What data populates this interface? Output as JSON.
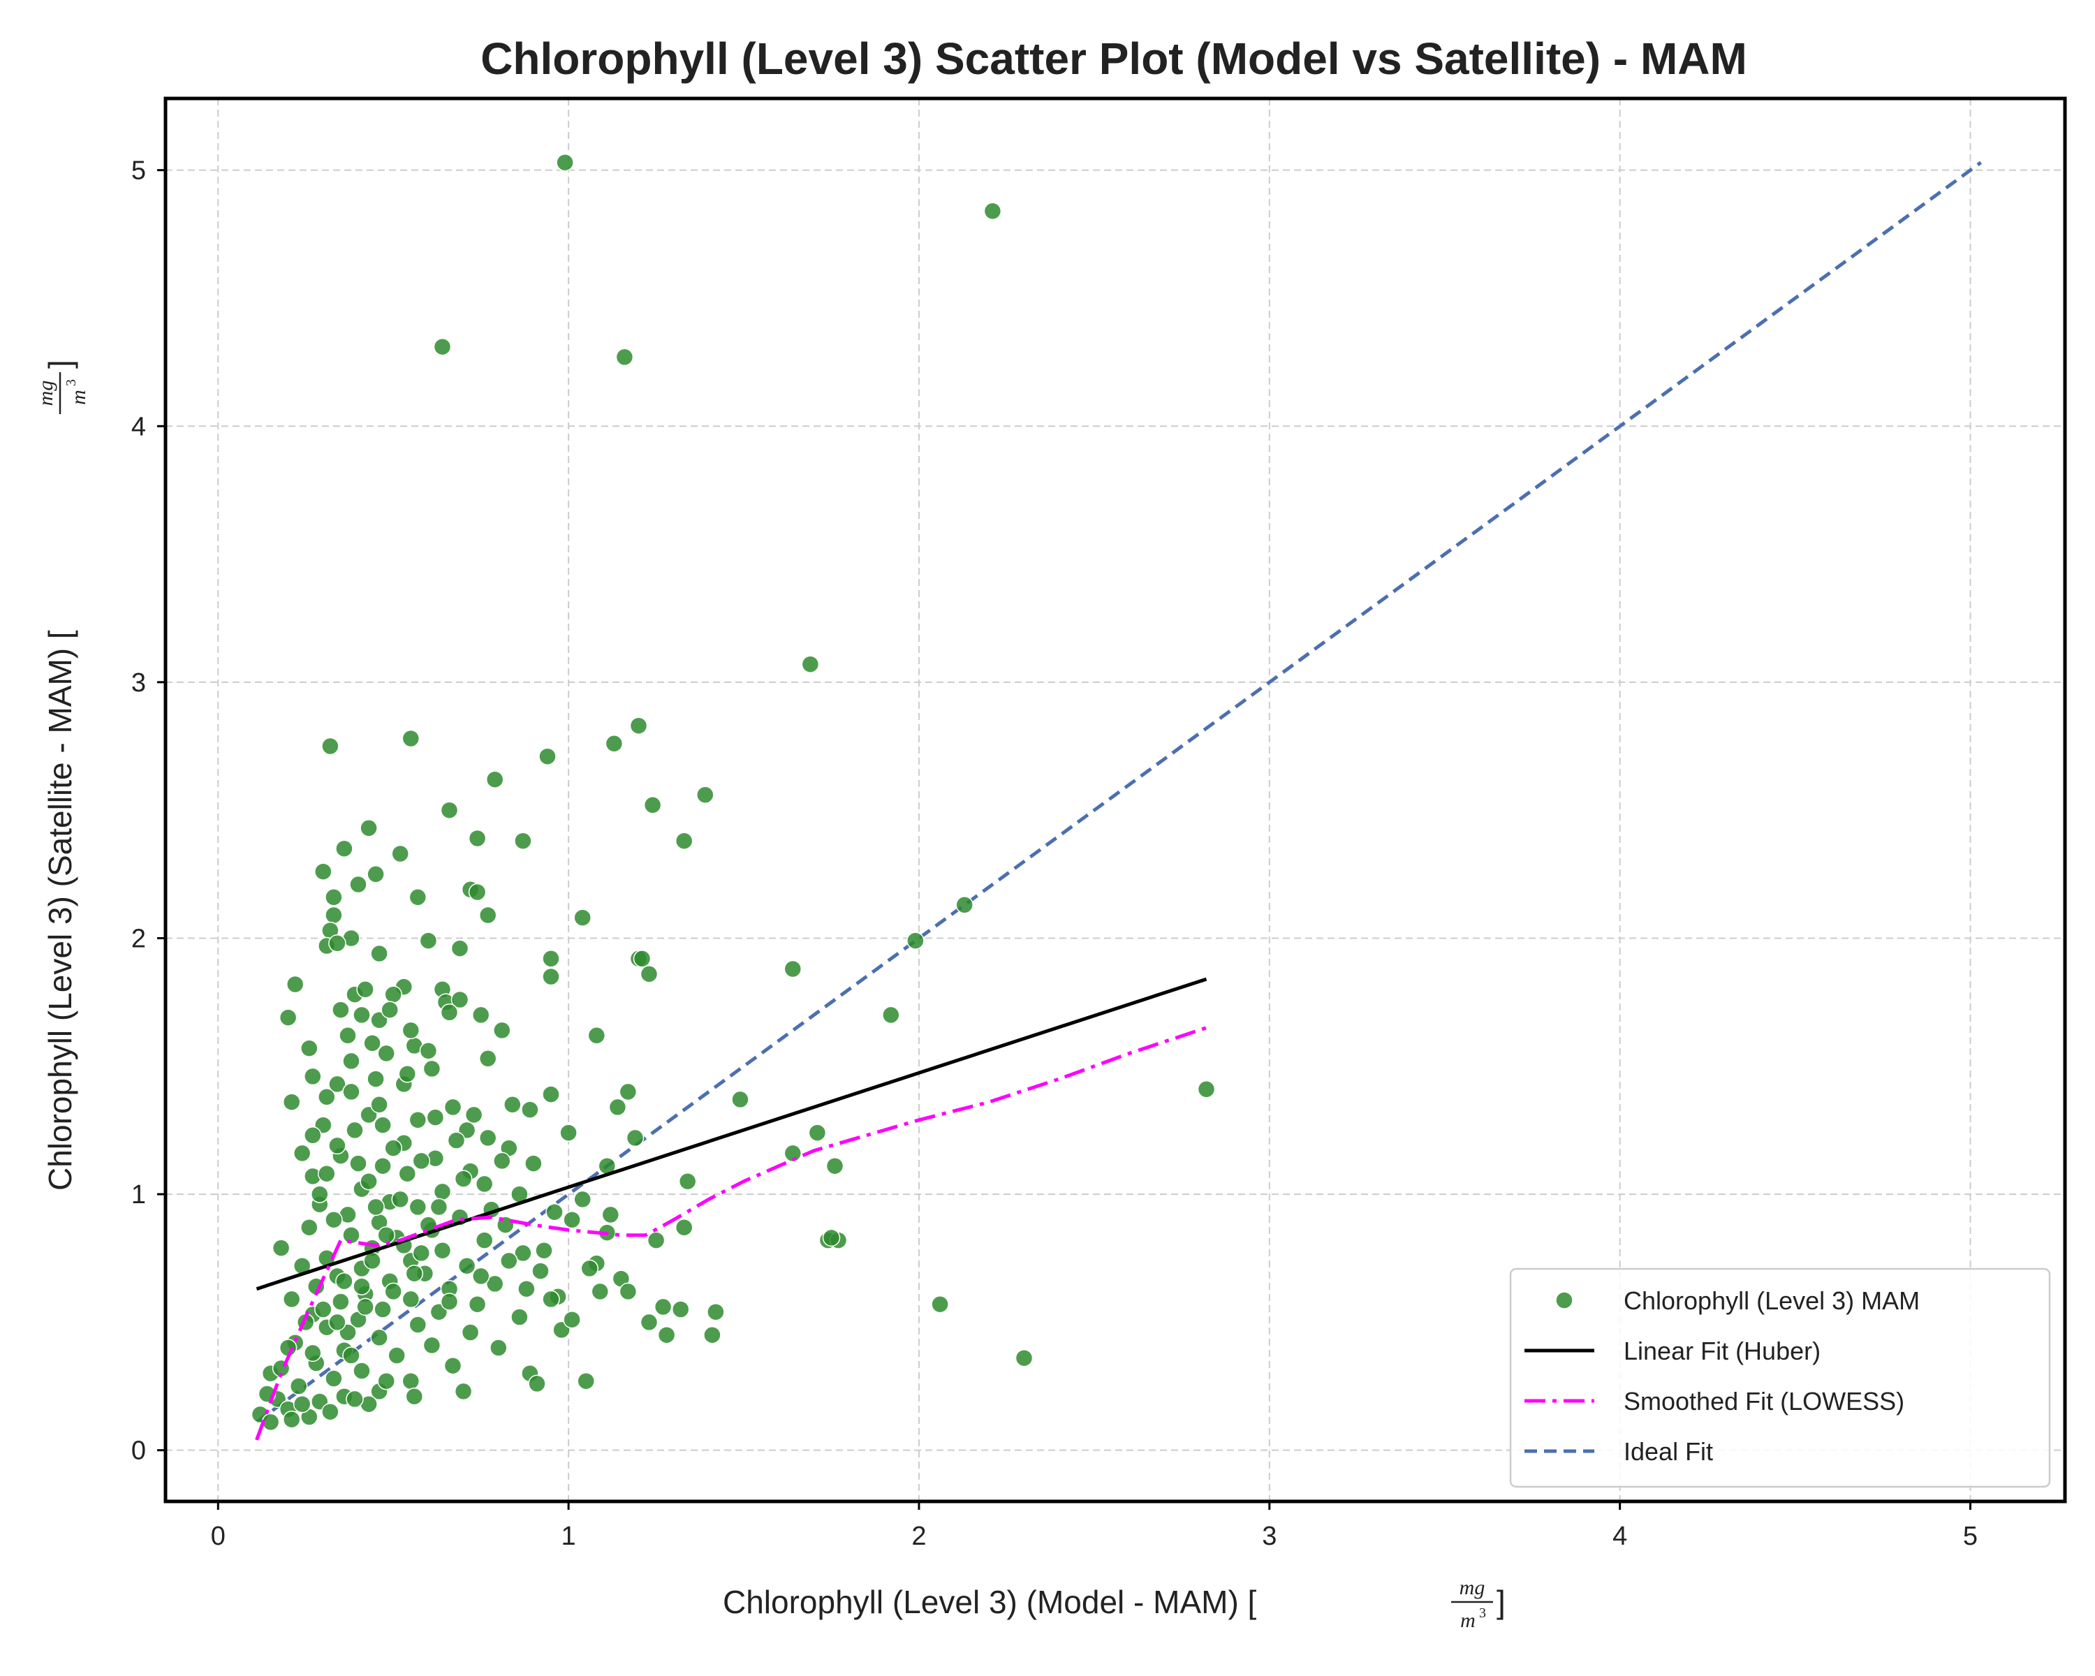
{
  "chart_data": {
    "type": "scatter",
    "title": "Chlorophyll (Level 3) Scatter Plot (Model vs Satellite) - MAM",
    "xlabel": {
      "text": "Chlorophyll (Level 3) (Model - MAM) [",
      "unit_num": "mg",
      "unit_den": "m",
      "unit_exp": "3",
      "close": "]"
    },
    "ylabel": {
      "text": "Chlorophyll (Level 3) (Satellite - MAM) [",
      "unit_num": "mg",
      "unit_den": "m",
      "unit_exp": "3",
      "close": "]"
    },
    "xlim": [
      -0.15,
      5.27
    ],
    "ylim": [
      -0.2,
      5.28
    ],
    "xticks": [
      0,
      1,
      2,
      3,
      4,
      5
    ],
    "yticks": [
      0,
      1,
      2,
      3,
      4,
      5
    ],
    "grid": true,
    "legend_position": "lower-right",
    "colors": {
      "points": "#2e8b2e",
      "linear": "#000000",
      "lowess": "#ff00ff",
      "ideal": "#4c6faf",
      "grid": "#cccccc"
    },
    "series": [
      {
        "name": "Chlorophyll (Level 3) MAM",
        "kind": "points",
        "points": [
          [
            0.99,
            5.03
          ],
          [
            2.21,
            4.84
          ],
          [
            0.64,
            4.31
          ],
          [
            1.16,
            4.27
          ],
          [
            1.69,
            3.07
          ],
          [
            0.55,
            2.78
          ],
          [
            0.32,
            2.75
          ],
          [
            1.13,
            2.76
          ],
          [
            1.2,
            2.83
          ],
          [
            0.94,
            2.71
          ],
          [
            0.79,
            2.62
          ],
          [
            1.39,
            2.56
          ],
          [
            1.24,
            2.52
          ],
          [
            0.66,
            2.5
          ],
          [
            0.43,
            2.43
          ],
          [
            0.87,
            2.38
          ],
          [
            1.33,
            2.38
          ],
          [
            0.74,
            2.39
          ],
          [
            0.36,
            2.35
          ],
          [
            0.52,
            2.33
          ],
          [
            0.3,
            2.26
          ],
          [
            0.45,
            2.25
          ],
          [
            0.4,
            2.21
          ],
          [
            0.72,
            2.19
          ],
          [
            0.74,
            2.18
          ],
          [
            0.57,
            2.16
          ],
          [
            0.33,
            2.16
          ],
          [
            2.13,
            2.13
          ],
          [
            0.77,
            2.09
          ],
          [
            0.33,
            2.09
          ],
          [
            1.04,
            2.08
          ],
          [
            0.32,
            2.03
          ],
          [
            0.6,
            1.99
          ],
          [
            0.38,
            2.0
          ],
          [
            0.31,
            1.97
          ],
          [
            0.34,
            1.98
          ],
          [
            1.99,
            1.99
          ],
          [
            0.69,
            1.96
          ],
          [
            0.46,
            1.94
          ],
          [
            1.2,
            1.92
          ],
          [
            0.95,
            1.92
          ],
          [
            1.21,
            1.92
          ],
          [
            1.64,
            1.88
          ],
          [
            1.23,
            1.86
          ],
          [
            0.95,
            1.85
          ],
          [
            0.22,
            1.82
          ],
          [
            0.53,
            1.81
          ],
          [
            0.64,
            1.8
          ],
          [
            0.5,
            1.78
          ],
          [
            0.39,
            1.78
          ],
          [
            0.65,
            1.75
          ],
          [
            0.69,
            1.76
          ],
          [
            0.35,
            1.72
          ],
          [
            0.41,
            1.7
          ],
          [
            1.92,
            1.7
          ],
          [
            0.2,
            1.69
          ],
          [
            0.66,
            1.71
          ],
          [
            0.75,
            1.7
          ],
          [
            0.46,
            1.68
          ],
          [
            0.81,
            1.64
          ],
          [
            1.08,
            1.62
          ],
          [
            0.26,
            1.57
          ],
          [
            0.56,
            1.58
          ],
          [
            0.48,
            1.55
          ],
          [
            0.38,
            1.52
          ],
          [
            0.77,
            1.53
          ],
          [
            0.61,
            1.49
          ],
          [
            0.45,
            1.45
          ],
          [
            0.53,
            1.43
          ],
          [
            0.34,
            1.43
          ],
          [
            2.82,
            1.41
          ],
          [
            1.17,
            1.4
          ],
          [
            0.95,
            1.39
          ],
          [
            1.49,
            1.37
          ],
          [
            0.21,
            1.36
          ],
          [
            0.84,
            1.35
          ],
          [
            0.67,
            1.34
          ],
          [
            1.14,
            1.34
          ],
          [
            0.89,
            1.33
          ],
          [
            0.43,
            1.31
          ],
          [
            0.57,
            1.29
          ],
          [
            0.3,
            1.27
          ],
          [
            0.71,
            1.25
          ],
          [
            1.0,
            1.24
          ],
          [
            1.71,
            1.24
          ],
          [
            0.27,
            1.23
          ],
          [
            0.77,
            1.22
          ],
          [
            1.19,
            1.22
          ],
          [
            0.53,
            1.2
          ],
          [
            0.83,
            1.18
          ],
          [
            1.64,
            1.16
          ],
          [
            0.35,
            1.15
          ],
          [
            0.62,
            1.14
          ],
          [
            0.9,
            1.12
          ],
          [
            1.76,
            1.11
          ],
          [
            0.47,
            1.11
          ],
          [
            1.11,
            1.11
          ],
          [
            0.72,
            1.09
          ],
          [
            0.27,
            1.07
          ],
          [
            0.31,
            1.08
          ],
          [
            0.54,
            1.08
          ],
          [
            1.34,
            1.05
          ],
          [
            0.76,
            1.04
          ],
          [
            0.41,
            1.02
          ],
          [
            0.64,
            1.01
          ],
          [
            0.86,
            1.0
          ],
          [
            1.04,
            0.98
          ],
          [
            0.49,
            0.97
          ],
          [
            0.29,
            0.96
          ],
          [
            0.57,
            0.95
          ],
          [
            0.96,
            0.93
          ],
          [
            0.37,
            0.92
          ],
          [
            0.69,
            0.91
          ],
          [
            1.01,
            0.9
          ],
          [
            0.46,
            0.89
          ],
          [
            0.82,
            0.88
          ],
          [
            0.26,
            0.87
          ],
          [
            1.33,
            0.87
          ],
          [
            0.61,
            0.86
          ],
          [
            1.11,
            0.85
          ],
          [
            0.38,
            0.84
          ],
          [
            0.51,
            0.83
          ],
          [
            1.74,
            0.82
          ],
          [
            1.77,
            0.82
          ],
          [
            0.76,
            0.82
          ],
          [
            1.25,
            0.82
          ],
          [
            0.18,
            0.79
          ],
          [
            0.44,
            0.79
          ],
          [
            0.64,
            0.78
          ],
          [
            0.87,
            0.77
          ],
          [
            0.31,
            0.75
          ],
          [
            0.55,
            0.74
          ],
          [
            1.08,
            0.73
          ],
          [
            0.24,
            0.72
          ],
          [
            0.71,
            0.72
          ],
          [
            0.41,
            0.71
          ],
          [
            0.92,
            0.7
          ],
          [
            0.59,
            0.69
          ],
          [
            0.34,
            0.68
          ],
          [
            1.15,
            0.67
          ],
          [
            0.49,
            0.66
          ],
          [
            0.79,
            0.65
          ],
          [
            0.28,
            0.64
          ],
          [
            0.66,
            0.63
          ],
          [
            1.09,
            0.62
          ],
          [
            0.42,
            0.61
          ],
          [
            0.97,
            0.6
          ],
          [
            0.55,
            0.59
          ],
          [
            0.21,
            0.59
          ],
          [
            0.35,
            0.58
          ],
          [
            0.74,
            0.57
          ],
          [
            1.27,
            0.56
          ],
          [
            0.47,
            0.55
          ],
          [
            0.63,
            0.54
          ],
          [
            1.42,
            0.54
          ],
          [
            0.27,
            0.53
          ],
          [
            0.86,
            0.52
          ],
          [
            0.4,
            0.51
          ],
          [
            1.23,
            0.5
          ],
          [
            0.57,
            0.49
          ],
          [
            0.31,
            0.48
          ],
          [
            0.98,
            0.47
          ],
          [
            0.72,
            0.46
          ],
          [
            1.41,
            0.45
          ],
          [
            0.46,
            0.44
          ],
          [
            1.28,
            0.45
          ],
          [
            0.22,
            0.42
          ],
          [
            0.61,
            0.41
          ],
          [
            0.36,
            0.39
          ],
          [
            0.8,
            0.4
          ],
          [
            0.51,
            0.37
          ],
          [
            2.3,
            0.36
          ],
          [
            0.28,
            0.34
          ],
          [
            0.67,
            0.33
          ],
          [
            0.41,
            0.31
          ],
          [
            0.15,
            0.3
          ],
          [
            0.89,
            0.3
          ],
          [
            0.33,
            0.28
          ],
          [
            0.55,
            0.27
          ],
          [
            1.05,
            0.27
          ],
          [
            0.23,
            0.25
          ],
          [
            0.91,
            0.26
          ],
          [
            0.46,
            0.23
          ],
          [
            0.7,
            0.23
          ],
          [
            0.36,
            0.21
          ],
          [
            0.17,
            0.2
          ],
          [
            0.56,
            0.21
          ],
          [
            0.29,
            0.19
          ],
          [
            0.43,
            0.18
          ],
          [
            0.2,
            0.16
          ],
          [
            0.12,
            0.14
          ],
          [
            0.26,
            0.13
          ],
          [
            0.15,
            0.11
          ],
          [
            0.21,
            0.12
          ],
          [
            0.32,
            0.15
          ],
          [
            0.39,
            0.2
          ],
          [
            0.24,
            0.18
          ],
          [
            0.48,
            0.27
          ],
          [
            0.5,
            0.62
          ],
          [
            0.53,
            0.8
          ],
          [
            0.45,
            0.95
          ],
          [
            0.43,
            1.05
          ],
          [
            0.5,
            1.18
          ],
          [
            0.39,
            1.25
          ],
          [
            0.46,
            1.35
          ],
          [
            0.42,
            0.56
          ],
          [
            0.36,
            0.66
          ],
          [
            0.58,
            0.77
          ],
          [
            0.6,
            0.88
          ],
          [
            0.52,
            0.98
          ],
          [
            0.4,
            1.12
          ],
          [
            0.33,
            0.9
          ],
          [
            0.3,
            0.55
          ],
          [
            0.37,
            0.46
          ],
          [
            0.44,
            0.74
          ],
          [
            0.56,
            0.69
          ],
          [
            0.63,
            0.95
          ],
          [
            0.7,
            1.06
          ],
          [
            0.48,
            0.84
          ],
          [
            0.41,
            0.64
          ],
          [
            0.66,
            0.58
          ],
          [
            0.75,
            0.68
          ],
          [
            0.83,
            0.74
          ],
          [
            0.88,
            0.63
          ],
          [
            0.93,
            0.78
          ],
          [
            0.38,
            1.4
          ],
          [
            0.54,
            1.47
          ],
          [
            0.47,
            1.27
          ],
          [
            0.58,
            1.13
          ],
          [
            0.34,
            1.19
          ],
          [
            0.29,
            1.0
          ],
          [
            0.62,
            1.3
          ],
          [
            0.68,
            1.21
          ],
          [
            0.2,
            0.4
          ],
          [
            0.25,
            0.5
          ],
          [
            0.18,
            0.32
          ],
          [
            0.14,
            0.22
          ],
          [
            0.27,
            0.38
          ],
          [
            0.34,
            0.5
          ],
          [
            0.38,
            0.37
          ],
          [
            2.06,
            0.57
          ],
          [
            1.75,
            0.83
          ],
          [
            1.32,
            0.55
          ],
          [
            1.17,
            0.62
          ],
          [
            1.06,
            0.71
          ],
          [
            1.01,
            0.51
          ],
          [
            0.95,
            0.59
          ],
          [
            1.12,
            0.92
          ],
          [
            0.78,
            0.94
          ],
          [
            0.81,
            1.13
          ],
          [
            0.73,
            1.31
          ],
          [
            0.55,
            1.64
          ],
          [
            0.44,
            1.59
          ],
          [
            0.37,
            1.62
          ],
          [
            0.49,
            1.72
          ],
          [
            0.6,
            1.56
          ],
          [
            0.42,
            1.8
          ],
          [
            0.27,
            1.46
          ],
          [
            0.31,
            1.38
          ],
          [
            0.24,
            1.16
          ]
        ]
      },
      {
        "name": "Linear Fit (Huber)",
        "kind": "line",
        "style": "solid",
        "x": [
          0.11,
          2.82
        ],
        "y": [
          0.63,
          1.84
        ]
      },
      {
        "name": "Smoothed Fit (LOWESS)",
        "kind": "line",
        "style": "dashdot",
        "x": [
          0.11,
          0.18,
          0.25,
          0.31,
          0.35,
          0.4,
          0.45,
          0.52,
          0.6,
          0.68,
          0.78,
          0.9,
          1.0,
          1.08,
          1.15,
          1.22,
          1.3,
          1.4,
          1.5,
          1.6,
          1.7,
          1.85,
          2.0,
          2.2,
          2.4,
          2.6,
          2.82
        ],
        "y": [
          0.04,
          0.3,
          0.52,
          0.7,
          0.82,
          0.81,
          0.8,
          0.82,
          0.86,
          0.9,
          0.91,
          0.88,
          0.86,
          0.85,
          0.84,
          0.84,
          0.9,
          0.98,
          1.05,
          1.11,
          1.17,
          1.23,
          1.29,
          1.36,
          1.45,
          1.55,
          1.65
        ]
      },
      {
        "name": "Ideal Fit",
        "kind": "line",
        "style": "dashed",
        "x": [
          0.11,
          5.03
        ],
        "y": [
          0.11,
          5.03
        ]
      }
    ]
  }
}
